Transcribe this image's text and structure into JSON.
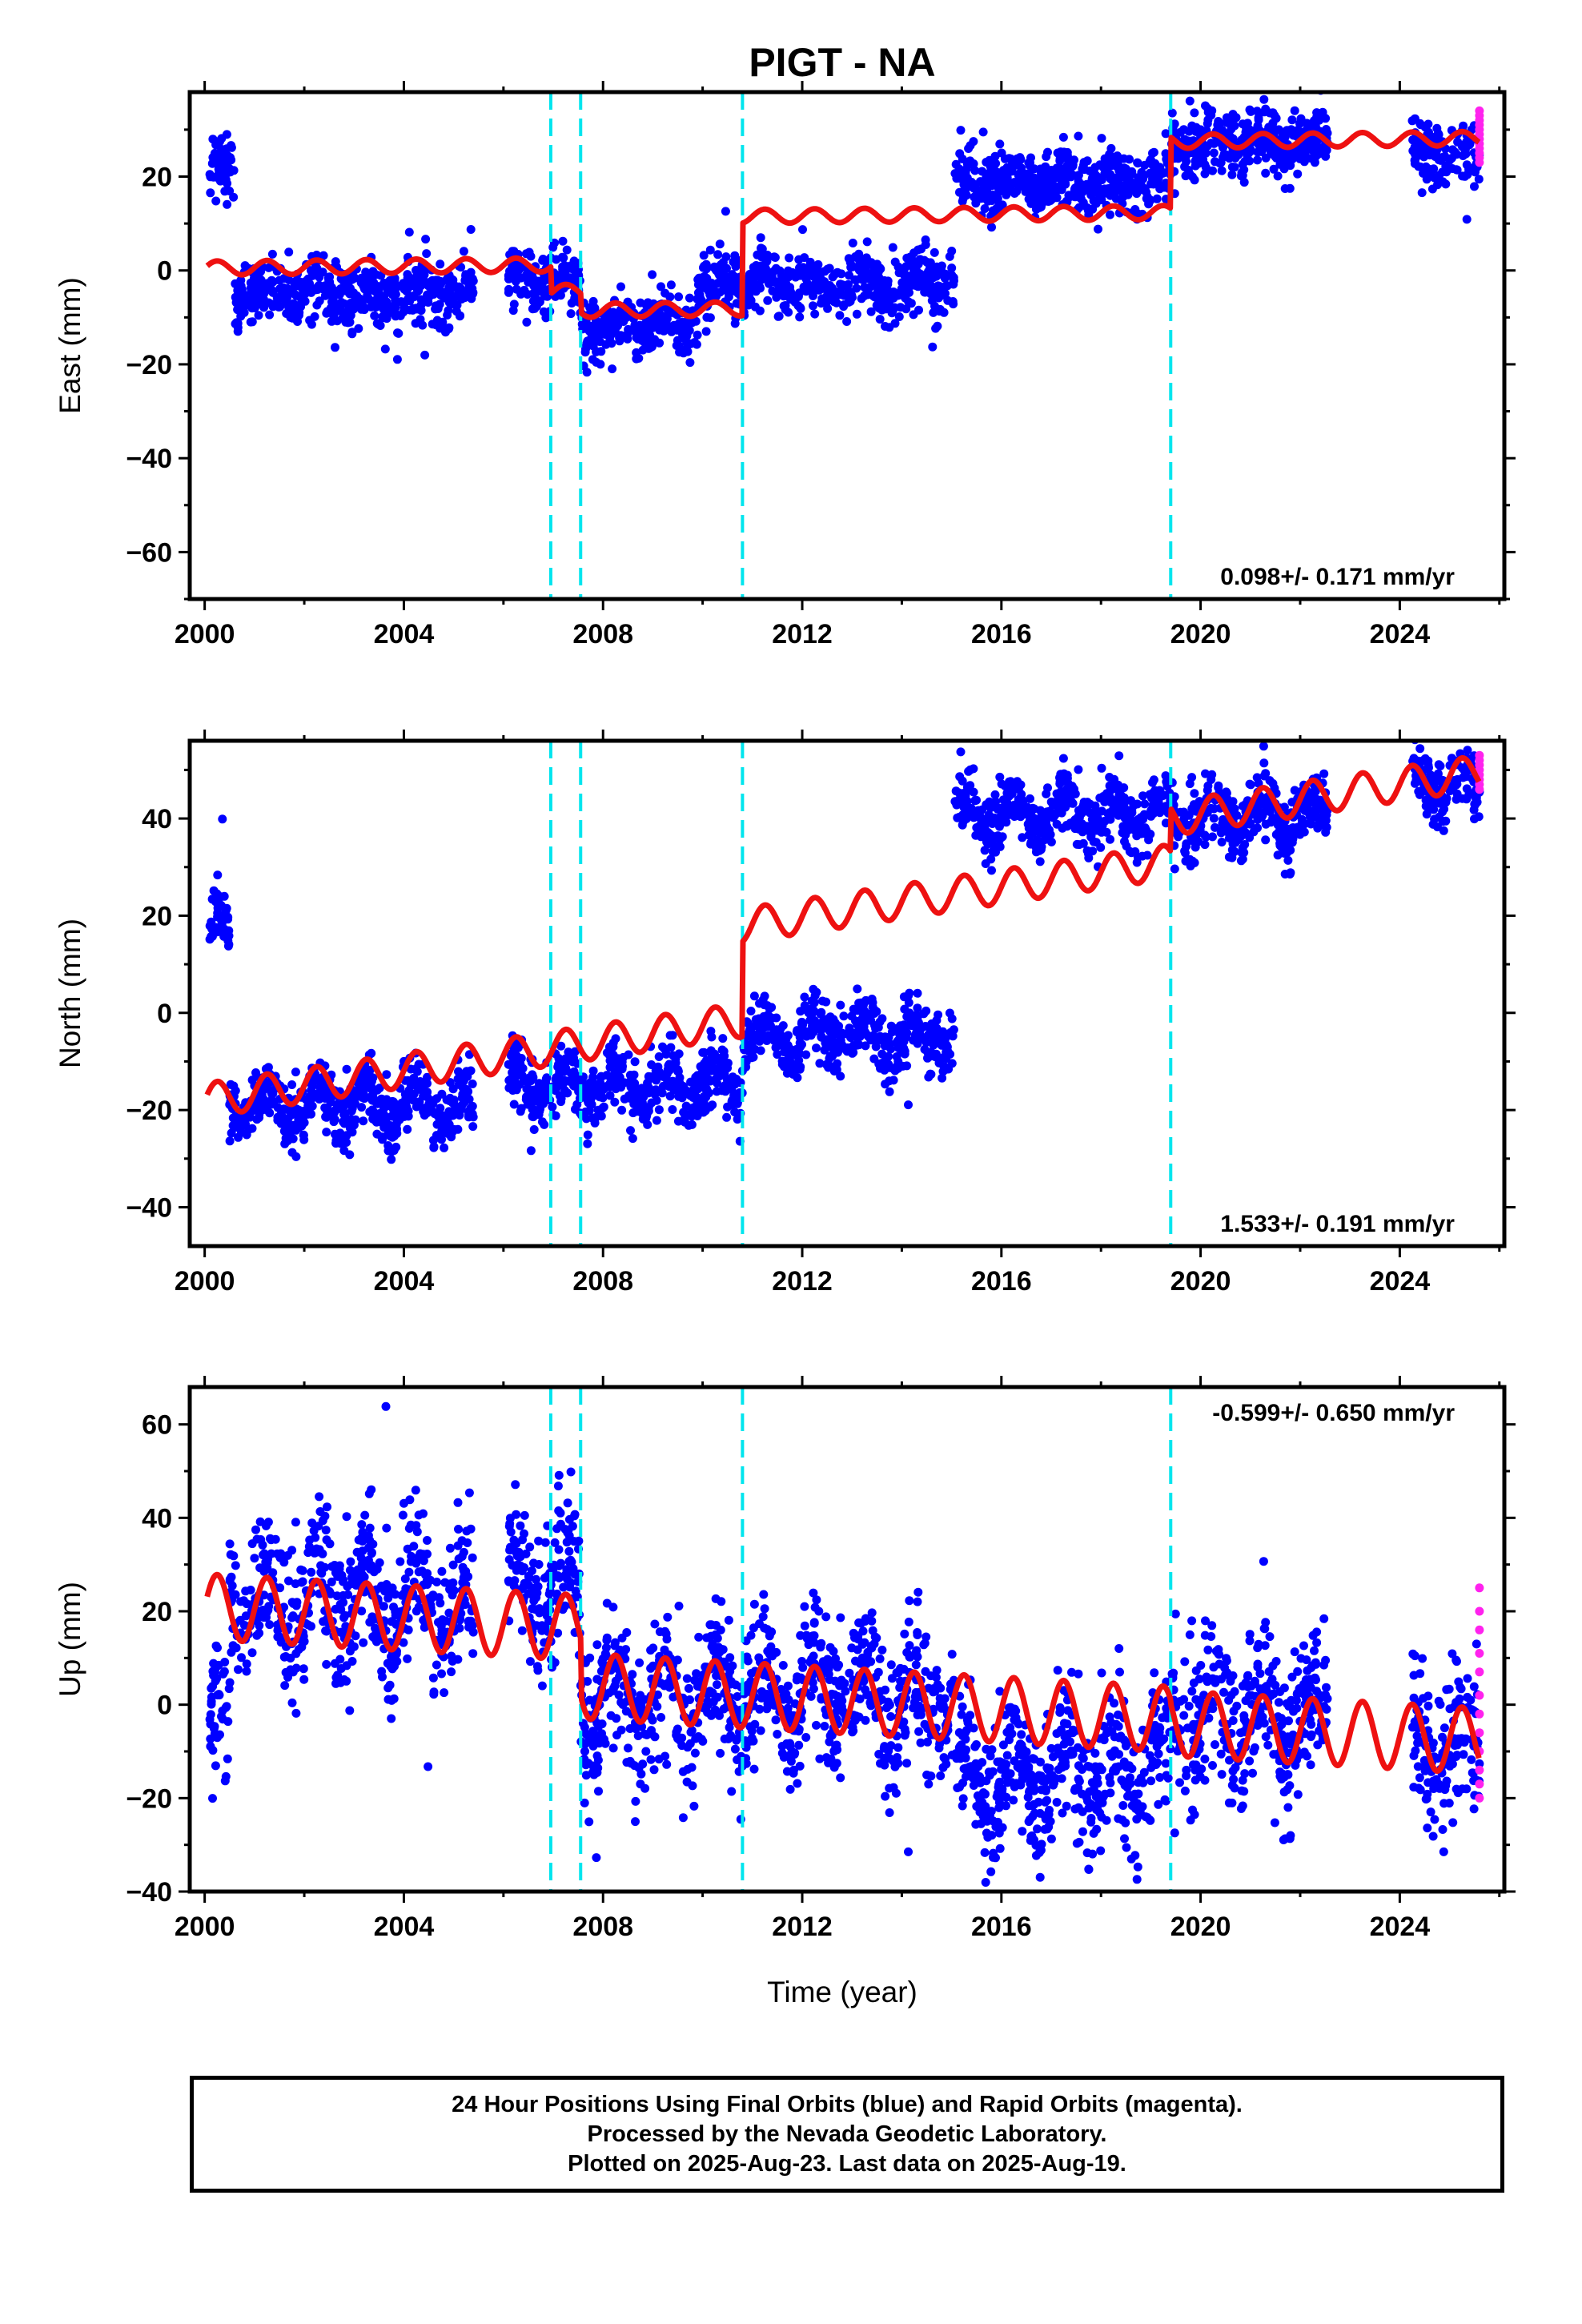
{
  "title": "PIGT - NA",
  "xlabel": "Time (year)",
  "footer": {
    "line1": "24 Hour Positions Using Final Orbits (blue) and Rapid Orbits (magenta).",
    "line2": "Processed by the Nevada Geodetic Laboratory.",
    "line3": "Plotted on 2025-Aug-23. Last data on 2025-Aug-19."
  },
  "colors": {
    "final_orbits": "#0000ff",
    "rapid_orbits": "#ff22ee",
    "model": "#ee1111",
    "offsets": "#00e5ee"
  },
  "chart_data": [
    {
      "type": "scatter",
      "component": "East",
      "ylabel": "East (mm)",
      "ylim": [
        -70,
        38
      ],
      "yticks": [
        20,
        0,
        -20,
        -40,
        -60
      ],
      "xlim": [
        1999.7,
        2026.1
      ],
      "xticks": [
        2000,
        2004,
        2008,
        2012,
        2016,
        2020,
        2024
      ],
      "xtick_labels": [
        "2000",
        "2004",
        "2008",
        "2012",
        "2016",
        "2020",
        "2024"
      ],
      "rate": "0.098+/- 0.171 mm/yr",
      "offset_epochs": [
        2006.95,
        2007.55,
        2010.8,
        2019.4
      ],
      "segments": [
        {
          "start": 2000.1,
          "end": 2000.6,
          "mean": 22
        },
        {
          "start": 2000.6,
          "end": 2005.4,
          "mean": -5
        },
        {
          "start": 2006.1,
          "end": 2007.55,
          "mean": -2
        },
        {
          "start": 2007.55,
          "end": 2009.9,
          "mean": -12
        },
        {
          "start": 2009.9,
          "end": 2015.05,
          "mean": -3
        },
        {
          "start": 2015.05,
          "end": 2019.4,
          "mean": 19
        },
        {
          "start": 2019.4,
          "end": 2022.55,
          "mean": 27
        },
        {
          "start": 2024.25,
          "end": 2025.6,
          "mean": 25
        }
      ],
      "rapid_points": [
        23,
        24,
        25,
        26,
        27,
        28,
        29,
        30,
        31,
        32,
        33,
        34
      ],
      "model": {
        "breaks": [
          2000.0,
          2006.95,
          2007.55,
          2010.8,
          2019.4
        ],
        "levels": [
          0.5,
          -4.5,
          -8.5,
          11.5,
          27.5
        ],
        "rate": 0.1,
        "annual_amp": 1.5
      }
    },
    {
      "type": "scatter",
      "component": "North",
      "ylabel": "North (mm)",
      "ylim": [
        -48,
        56
      ],
      "yticks": [
        40,
        20,
        0,
        -20,
        -40
      ],
      "xlim": [
        1999.7,
        2026.1
      ],
      "xticks": [
        2000,
        2004,
        2008,
        2012,
        2016,
        2020,
        2024
      ],
      "xtick_labels": [
        "2000",
        "2004",
        "2008",
        "2012",
        "2016",
        "2020",
        "2024"
      ],
      "rate": "1.533+/- 0.191 mm/yr",
      "offset_epochs": [
        2006.95,
        2007.55,
        2010.8,
        2019.4
      ],
      "segments": [
        {
          "start": 2000.1,
          "end": 2000.5,
          "mean": 17
        },
        {
          "start": 2000.5,
          "end": 2005.4,
          "mean": -19
        },
        {
          "start": 2006.1,
          "end": 2010.8,
          "mean": -15
        },
        {
          "start": 2010.8,
          "end": 2015.05,
          "mean": -5
        },
        {
          "start": 2015.05,
          "end": 2019.4,
          "mean": 41
        },
        {
          "start": 2019.4,
          "end": 2022.55,
          "mean": 40
        },
        {
          "start": 2024.25,
          "end": 2025.6,
          "mean": 47
        }
      ],
      "rapid_points": [
        46,
        47,
        48,
        49,
        50,
        51,
        52,
        53
      ],
      "model": {
        "breaks": [
          2000.0,
          2010.8,
          2019.4
        ],
        "levels": [
          -18,
          18,
          40
        ],
        "rate": 1.53,
        "annual_amp": 3.5
      }
    },
    {
      "type": "scatter",
      "component": "Up",
      "ylabel": "Up (mm)",
      "ylim": [
        -40,
        68
      ],
      "yticks": [
        60,
        40,
        20,
        0,
        -20,
        -40
      ],
      "xlim": [
        1999.7,
        2026.1
      ],
      "xticks": [
        2000,
        2004,
        2008,
        2012,
        2016,
        2020,
        2024
      ],
      "xtick_labels": [
        "2000",
        "2004",
        "2008",
        "2012",
        "2016",
        "2020",
        "2024"
      ],
      "rate": "-0.599+/- 0.650 mm/yr",
      "offset_epochs": [
        2006.95,
        2007.55,
        2010.8,
        2019.4
      ],
      "segments": [
        {
          "start": 2000.1,
          "end": 2000.5,
          "mean": -5
        },
        {
          "start": 2000.5,
          "end": 2005.4,
          "mean": 22
        },
        {
          "start": 2006.1,
          "end": 2007.55,
          "mean": 25
        },
        {
          "start": 2007.55,
          "end": 2010.8,
          "mean": 1
        },
        {
          "start": 2010.8,
          "end": 2015.05,
          "mean": 2
        },
        {
          "start": 2015.05,
          "end": 2019.4,
          "mean": -15
        },
        {
          "start": 2019.4,
          "end": 2022.55,
          "mean": -3
        },
        {
          "start": 2024.25,
          "end": 2025.6,
          "mean": -10
        }
      ],
      "rapid_points": [
        -20,
        -17,
        -14,
        -10,
        -6,
        -2,
        2,
        7,
        11,
        16,
        20,
        25
      ],
      "model": {
        "breaks": [
          2000.0,
          2007.55,
          2019.4
        ],
        "levels": [
          21,
          4,
          -4
        ],
        "rate": -0.6,
        "annual_amp": 7
      }
    }
  ]
}
